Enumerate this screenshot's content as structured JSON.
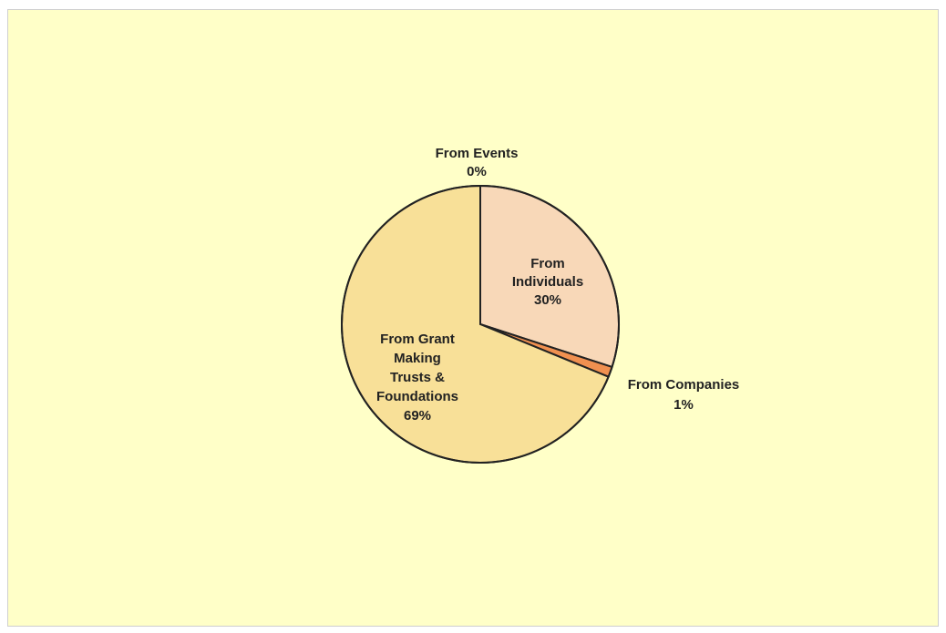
{
  "chart_data": {
    "type": "pie",
    "title": "",
    "slices": [
      {
        "label_lines": [
          "From Individuals",
          "30%"
        ],
        "value": 30,
        "color": "#f8d8b8"
      },
      {
        "label_lines": [
          "From Companies",
          "1%"
        ],
        "value": 1.2,
        "color": "#f09050"
      },
      {
        "label_lines": [
          "From Grant Making Trusts & Foundations",
          "69%"
        ],
        "value": 68.8,
        "color": "#f8e098"
      },
      {
        "label_lines": [
          "From Events",
          "0%"
        ],
        "value": 0,
        "color": "#e8c878"
      }
    ],
    "label_text": {
      "individuals": [
        "From",
        "Individuals",
        "30%"
      ],
      "companies": [
        "From Companies",
        "1%"
      ],
      "grant": [
        "From Grant",
        "Making",
        "Trusts &",
        "Foundations",
        "69%"
      ],
      "events": [
        "From Events",
        "0%"
      ]
    }
  }
}
